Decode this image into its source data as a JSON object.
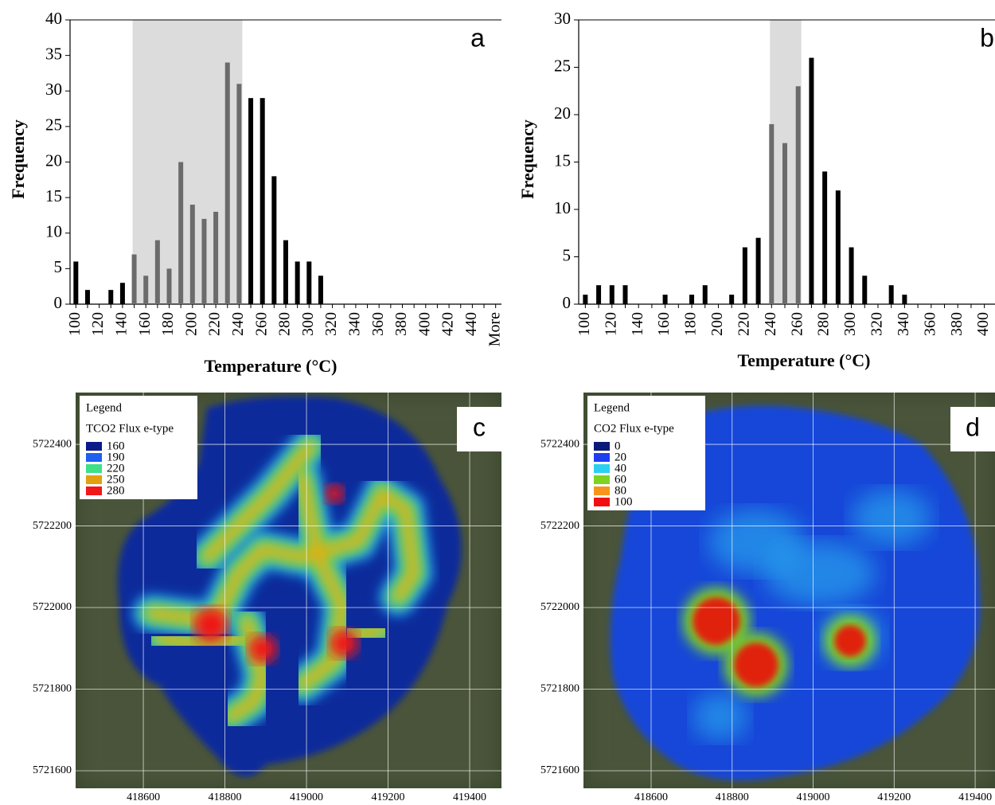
{
  "chart_data": [
    {
      "type": "bar",
      "panel_label": "a",
      "y_label": "Frequency",
      "x_label": "Temperature (°C)",
      "categories": [
        "100",
        null,
        "120",
        null,
        "140",
        null,
        "160",
        null,
        "180",
        null,
        "200",
        null,
        "220",
        null,
        "240",
        null,
        "260",
        null,
        "280",
        null,
        "300",
        null,
        "320",
        null,
        "340",
        null,
        "360",
        null,
        "380",
        null,
        "400",
        null,
        "420",
        null,
        "440",
        null,
        "More"
      ],
      "values": [
        6,
        2,
        0,
        2,
        3,
        7,
        4,
        9,
        5,
        20,
        14,
        12,
        13,
        34,
        31,
        29,
        29,
        18,
        9,
        6,
        6,
        4,
        0,
        0,
        0,
        0,
        0,
        0,
        0,
        0,
        0,
        0,
        0,
        0,
        0,
        0,
        0
      ],
      "colors": [
        "#000000",
        "#000000",
        "#000000",
        "#000000",
        "#000000",
        "#6b6b6b",
        "#6b6b6b",
        "#6b6b6b",
        "#6b6b6b",
        "#6b6b6b",
        "#6b6b6b",
        "#6b6b6b",
        "#6b6b6b",
        "#6b6b6b",
        "#6b6b6b",
        "#000000",
        "#000000",
        "#000000",
        "#000000",
        "#000000",
        "#000000",
        "#000000",
        "#000000",
        "#000000",
        "#000000",
        "#000000",
        "#000000",
        "#000000",
        "#000000",
        "#000000",
        "#000000",
        "#000000",
        "#000000",
        "#000000",
        "#000000",
        "#000000",
        "#000000"
      ],
      "highlight_color": "#dcdcdc",
      "ylim": [
        0,
        40
      ],
      "yticks": [
        0,
        5,
        10,
        15,
        20,
        25,
        30,
        35,
        40
      ]
    },
    {
      "type": "bar",
      "panel_label": "b",
      "y_label": "Frequency",
      "x_label": "Temperature (°C)",
      "categories": [
        "100",
        null,
        "120",
        null,
        "140",
        null,
        "160",
        null,
        "180",
        null,
        "200",
        null,
        "220",
        null,
        "240",
        null,
        "260",
        null,
        "280",
        null,
        "300",
        null,
        "320",
        null,
        "340",
        null,
        "360",
        null,
        "380",
        null,
        "400"
      ],
      "values": [
        1,
        2,
        2,
        2,
        0,
        0,
        1,
        0,
        1,
        2,
        0,
        1,
        6,
        7,
        19,
        17,
        23,
        26,
        14,
        12,
        6,
        3,
        0,
        2,
        1,
        0,
        0,
        0,
        0,
        0,
        0
      ],
      "colors": [
        "#000000",
        "#000000",
        "#000000",
        "#000000",
        "#000000",
        "#000000",
        "#000000",
        "#000000",
        "#000000",
        "#000000",
        "#000000",
        "#000000",
        "#000000",
        "#000000",
        "#6b6b6b",
        "#6b6b6b",
        "#6b6b6b",
        "#000000",
        "#000000",
        "#000000",
        "#000000",
        "#000000",
        "#000000",
        "#000000",
        "#000000",
        "#000000",
        "#000000",
        "#000000",
        "#000000",
        "#000000",
        "#000000"
      ],
      "highlight_color": "#dcdcdc",
      "ylim": [
        0,
        30
      ],
      "yticks": [
        0,
        5,
        10,
        15,
        20,
        25,
        30
      ]
    },
    {
      "type": "heatmap",
      "panel_label": "c",
      "grid": true,
      "xlim": [
        418434,
        419478
      ],
      "ylim": [
        5721557,
        5722527
      ],
      "xticks": [
        418600,
        418800,
        419000,
        419200,
        419400
      ],
      "yticks": [
        5721600,
        5721800,
        5722000,
        5722200,
        5722400
      ],
      "legend": {
        "title": "Legend",
        "subtitle": "TCO2 Flux e-type",
        "items": [
          {
            "label": 160,
            "color": "#0a1a8a"
          },
          {
            "label": 190,
            "color": "#1e5ff0"
          },
          {
            "label": 220,
            "color": "#3ee08a"
          },
          {
            "label": 250,
            "color": "#e0a010"
          },
          {
            "label": 280,
            "color": "#f01818"
          }
        ]
      }
    },
    {
      "type": "heatmap",
      "panel_label": "d",
      "grid": true,
      "xlim": [
        418433,
        419449
      ],
      "ylim": [
        5721557,
        5722527
      ],
      "xticks": [
        418600,
        418800,
        419000,
        419200,
        419400
      ],
      "yticks": [
        5721600,
        5721800,
        5722000,
        5722200,
        5722400
      ],
      "legend": {
        "title": "Legend",
        "subtitle": "CO2 Flux e-type",
        "items": [
          {
            "label": 0,
            "color": "#0a1a7a"
          },
          {
            "label": 20,
            "color": "#1f3ef0"
          },
          {
            "label": 40,
            "color": "#2ad0f0"
          },
          {
            "label": 60,
            "color": "#7ed321"
          },
          {
            "label": 80,
            "color": "#f7941d"
          },
          {
            "label": 100,
            "color": "#f01010"
          }
        ]
      }
    }
  ]
}
